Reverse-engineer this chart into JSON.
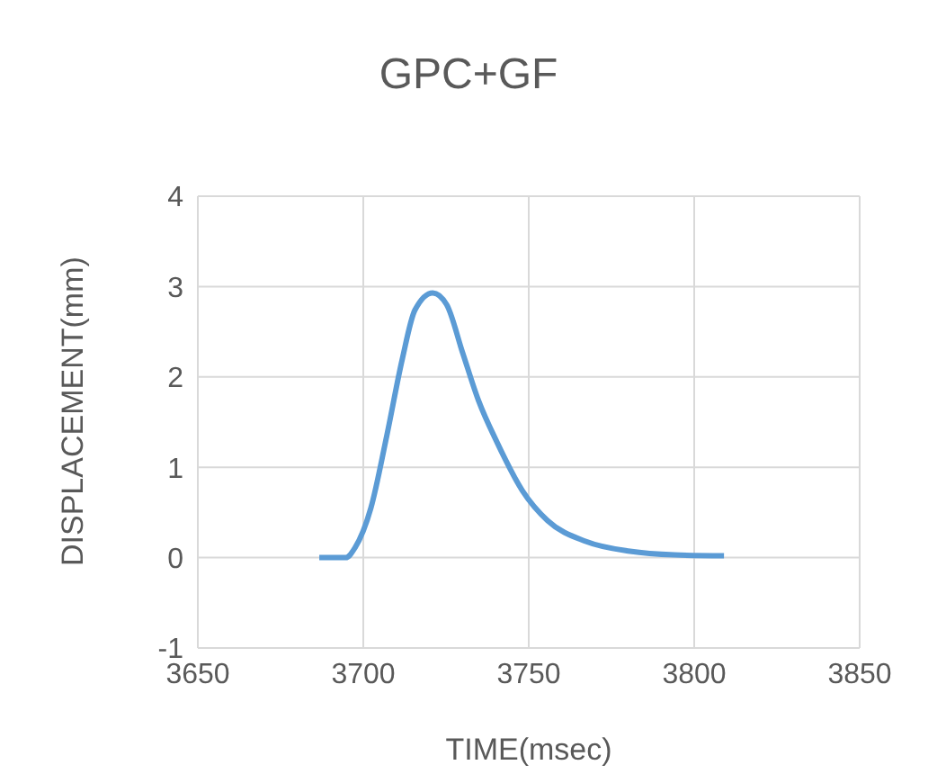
{
  "chart_data": {
    "type": "line",
    "title": "GPC+GF",
    "xlabel": "TIME(msec)",
    "ylabel": "DISPLACEMENT(mm)",
    "x": [
      3686.7,
      3694.7,
      3697.5,
      3702.3,
      3707.1,
      3711.8,
      3715.6,
      3721,
      3725.2,
      3730,
      3734.8,
      3740.5,
      3748.1,
      3755.7,
      3767.2,
      3780.6,
      3794,
      3809
    ],
    "series": [
      {
        "color": "#5b9bd5",
        "values": [
          0,
          0,
          0.11,
          0.55,
          1.35,
          2.2,
          2.74,
          2.93,
          2.8,
          2.27,
          1.74,
          1.27,
          0.74,
          0.41,
          0.18,
          0.07,
          0.03,
          0.02
        ]
      }
    ],
    "xlim": [
      3650,
      3850
    ],
    "xticks": [
      3650,
      3700,
      3750,
      3800,
      3850
    ],
    "ylim": [
      -1,
      4
    ],
    "yticks": [
      -1,
      0,
      1,
      2,
      3,
      4
    ],
    "grid": true,
    "marker": "none",
    "line_style": "solid",
    "legend": false
  }
}
